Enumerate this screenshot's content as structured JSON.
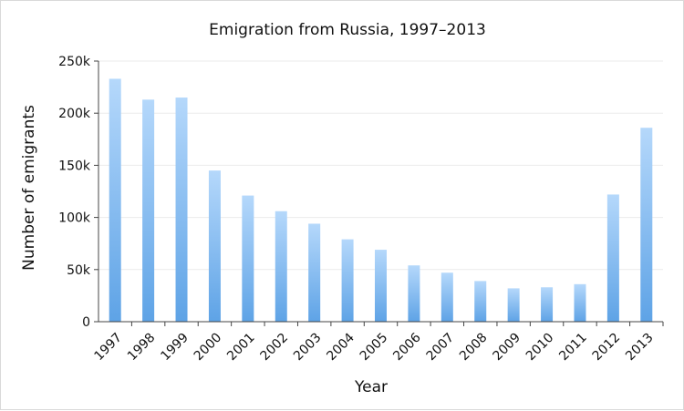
{
  "chart_data": {
    "type": "bar",
    "title": "Emigration from Russia, 1997–2013",
    "xlabel": "Year",
    "ylabel": "Number of emigrants",
    "categories": [
      "1997",
      "1998",
      "1999",
      "2000",
      "2001",
      "2002",
      "2003",
      "2004",
      "2005",
      "2006",
      "2007",
      "2008",
      "2009",
      "2010",
      "2011",
      "2012",
      "2013"
    ],
    "values": [
      233000,
      213000,
      215000,
      145000,
      121000,
      106000,
      94000,
      79000,
      69000,
      54000,
      47000,
      39000,
      32000,
      33000,
      36000,
      122000,
      186000
    ],
    "ylim": [
      0,
      250000
    ],
    "yticks": [
      0,
      50000,
      100000,
      150000,
      200000,
      250000
    ],
    "ytick_labels": [
      "0",
      "50k",
      "100k",
      "150k",
      "200k",
      "250k"
    ],
    "grid": true,
    "colors": {
      "bar_top": "#b5d8fb",
      "bar_bottom": "#5ea3e6",
      "grid": "#ebebeb",
      "axis": "#444444"
    }
  }
}
